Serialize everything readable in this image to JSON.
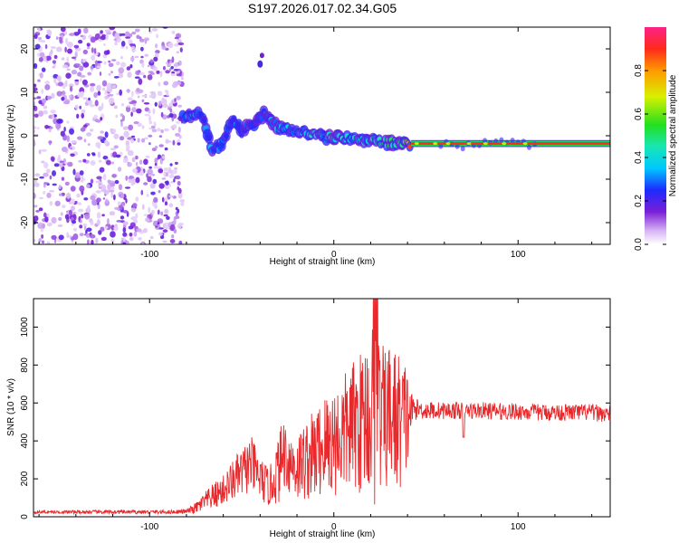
{
  "chart_data": [
    {
      "type": "heatmap",
      "title": "S197.2026.017.02.34.G05",
      "xlabel": "Height of straight line (km)",
      "ylabel": "Frequency (Hz)",
      "xlim": [
        -163,
        150
      ],
      "ylim": [
        -25,
        25
      ],
      "xticks": [
        -100,
        0,
        100
      ],
      "yticks": [
        20,
        10,
        0,
        -10,
        -20
      ],
      "xtick_labels": [
        "-100",
        "0",
        "100"
      ],
      "ytick_labels": [
        "20",
        "10",
        "0",
        "-10",
        "-20"
      ],
      "noise_region_x": [
        -163,
        -82
      ],
      "signal_track": [
        {
          "x": -82,
          "f": 4.5,
          "a": 0.28
        },
        {
          "x": -76,
          "f": 4.8,
          "a": 0.3
        },
        {
          "x": -72,
          "f": 5.5,
          "a": 0.25
        },
        {
          "x": -66,
          "f": -3.5,
          "a": 0.3
        },
        {
          "x": -60,
          "f": -1.5,
          "a": 0.3
        },
        {
          "x": -55,
          "f": 4.0,
          "a": 0.28
        },
        {
          "x": -50,
          "f": 1.0,
          "a": 0.22
        },
        {
          "x": -45,
          "f": 2.5,
          "a": 0.28
        },
        {
          "x": -38,
          "f": 5.0,
          "a": 0.25
        },
        {
          "x": -30,
          "f": 2.0,
          "a": 0.33
        },
        {
          "x": -22,
          "f": 1.2,
          "a": 0.32
        },
        {
          "x": -15,
          "f": 0.5,
          "a": 0.35
        },
        {
          "x": -8,
          "f": 0.0,
          "a": 0.42
        },
        {
          "x": 0,
          "f": -0.5,
          "a": 0.42
        },
        {
          "x": 8,
          "f": -0.8,
          "a": 0.4
        },
        {
          "x": 18,
          "f": -1.0,
          "a": 0.42
        },
        {
          "x": 28,
          "f": -1.5,
          "a": 0.45
        },
        {
          "x": 38,
          "f": -1.8,
          "a": 0.5
        },
        {
          "x": 42,
          "f": -1.8,
          "a": 0.95
        },
        {
          "x": 150,
          "f": -1.8,
          "a": 0.95
        }
      ],
      "colorbar": {
        "label": "Normalized spectral amplitude",
        "range": [
          0,
          1
        ],
        "ticks": [
          0.0,
          0.2,
          0.4,
          0.6,
          0.8
        ],
        "tick_labels": [
          "0.0",
          "0.2",
          "0.4",
          "0.6",
          "0.8"
        ]
      }
    },
    {
      "type": "line",
      "title": "",
      "xlabel": "Height of straight line (km)",
      "ylabel": "SNR (10 * v/v)",
      "xlim": [
        -163,
        150
      ],
      "ylim": [
        0,
        1150
      ],
      "xticks": [
        -100,
        0,
        100
      ],
      "yticks": [
        0,
        200,
        400,
        600,
        800,
        1000
      ],
      "xtick_labels": [
        "-100",
        "0",
        "100"
      ],
      "ytick_labels": [
        "0",
        "200",
        "400",
        "600",
        "800",
        "1000"
      ],
      "series": [
        {
          "name": "SNR",
          "color": "#e8282b",
          "x": [
            -163,
            -150,
            -130,
            -110,
            -90,
            -80,
            -75,
            -70,
            -65,
            -60,
            -55,
            -50,
            -45,
            -40,
            -35,
            -30,
            -27,
            -25,
            -20,
            -15,
            -10,
            -5,
            0,
            5,
            10,
            15,
            18,
            20,
            22,
            23,
            25,
            28,
            30,
            35,
            40,
            42,
            45,
            50,
            60,
            70,
            80,
            90,
            100,
            110,
            120,
            130,
            140,
            150
          ],
          "mean": [
            25,
            25,
            25,
            25,
            25,
            28,
            45,
            80,
            110,
            140,
            190,
            230,
            280,
            200,
            150,
            250,
            350,
            300,
            260,
            300,
            330,
            380,
            400,
            430,
            480,
            500,
            560,
            520,
            560,
            560,
            520,
            500,
            540,
            500,
            520,
            560,
            570,
            560,
            560,
            560,
            560,
            555,
            555,
            550,
            550,
            550,
            550,
            540
          ],
          "amp": [
            8,
            8,
            10,
            10,
            10,
            12,
            30,
            50,
            70,
            80,
            110,
            130,
            150,
            120,
            100,
            180,
            200,
            180,
            180,
            220,
            240,
            280,
            300,
            320,
            340,
            380,
            420,
            480,
            560,
            540,
            420,
            380,
            400,
            380,
            300,
            100,
            50,
            50,
            45,
            45,
            45,
            45,
            45,
            45,
            45,
            45,
            45,
            45
          ]
        }
      ]
    }
  ]
}
